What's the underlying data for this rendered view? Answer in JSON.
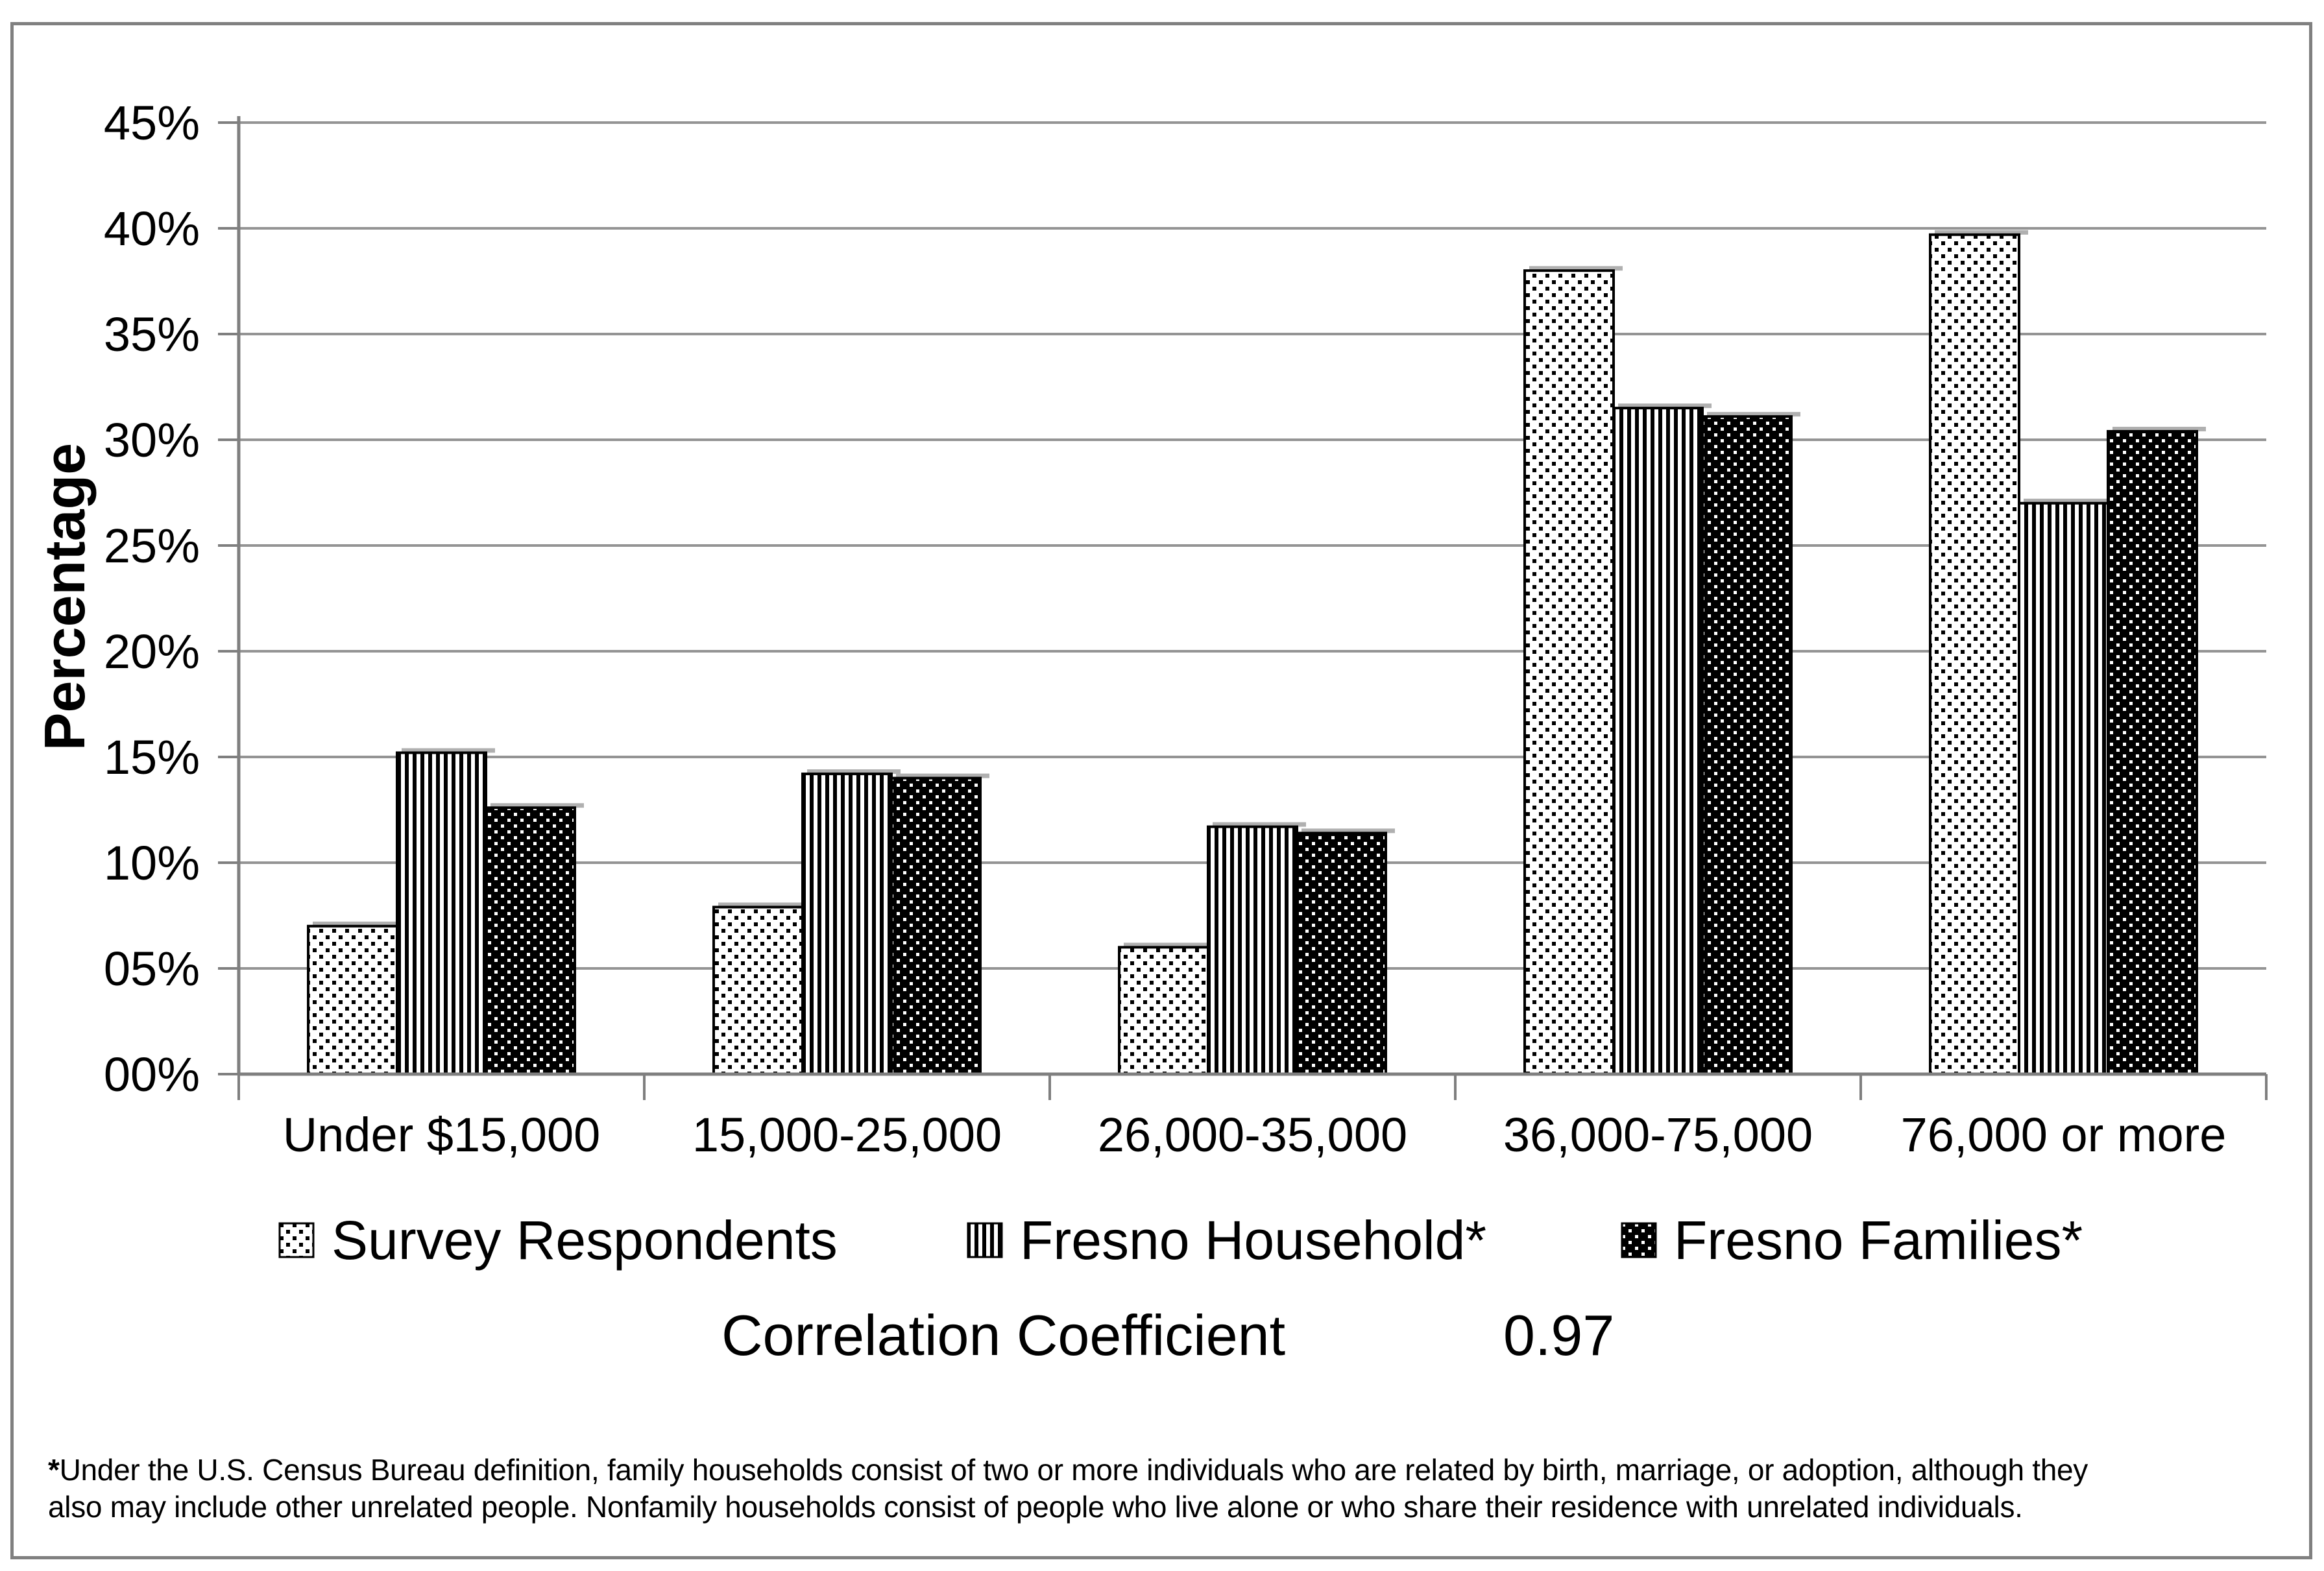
{
  "figure": {
    "correlation": {
      "label": "Correlation Coefficient",
      "value": "0.97"
    },
    "footnote": {
      "marker": "*",
      "line1": "Under the U.S. Census Bureau definition, family households consist of two or more individuals who are related by birth, marriage, or adoption, although they",
      "line2": "also may include other unrelated people. Nonfamily households consist of people who live alone or who share their residence with unrelated individuals."
    }
  },
  "chart_data": {
    "type": "bar",
    "title": "",
    "categories": [
      "Under $15,000",
      "15,000-25,000",
      "26,000-35,000",
      "36,000-75,000",
      "76,000 or more"
    ],
    "series": [
      {
        "name": "Survey Respondents",
        "pattern": "dots-light",
        "values": [
          7.0,
          7.9,
          6.0,
          38.0,
          39.7
        ]
      },
      {
        "name": "Fresno Household*",
        "pattern": "stripes-vertical",
        "values": [
          15.2,
          14.2,
          11.7,
          31.5,
          27.0
        ]
      },
      {
        "name": "Fresno Families*",
        "pattern": "dots-dark",
        "values": [
          12.6,
          14.0,
          11.4,
          31.1,
          30.4
        ]
      }
    ],
    "xlabel": "",
    "ylabel": "Percentage",
    "ylim": [
      0,
      45
    ],
    "ytick_step": 5,
    "yticks": [
      "00%",
      "05%",
      "10%",
      "15%",
      "20%",
      "25%",
      "30%",
      "35%",
      "40%",
      "45%"
    ],
    "grid": true,
    "legend_position": "bottom",
    "colors": {
      "gridline": "#949494",
      "axis": "#7f7f7f",
      "bar_stroke": "#000000",
      "bar_shadow": "#b0b0b0",
      "text": "#000000"
    }
  }
}
